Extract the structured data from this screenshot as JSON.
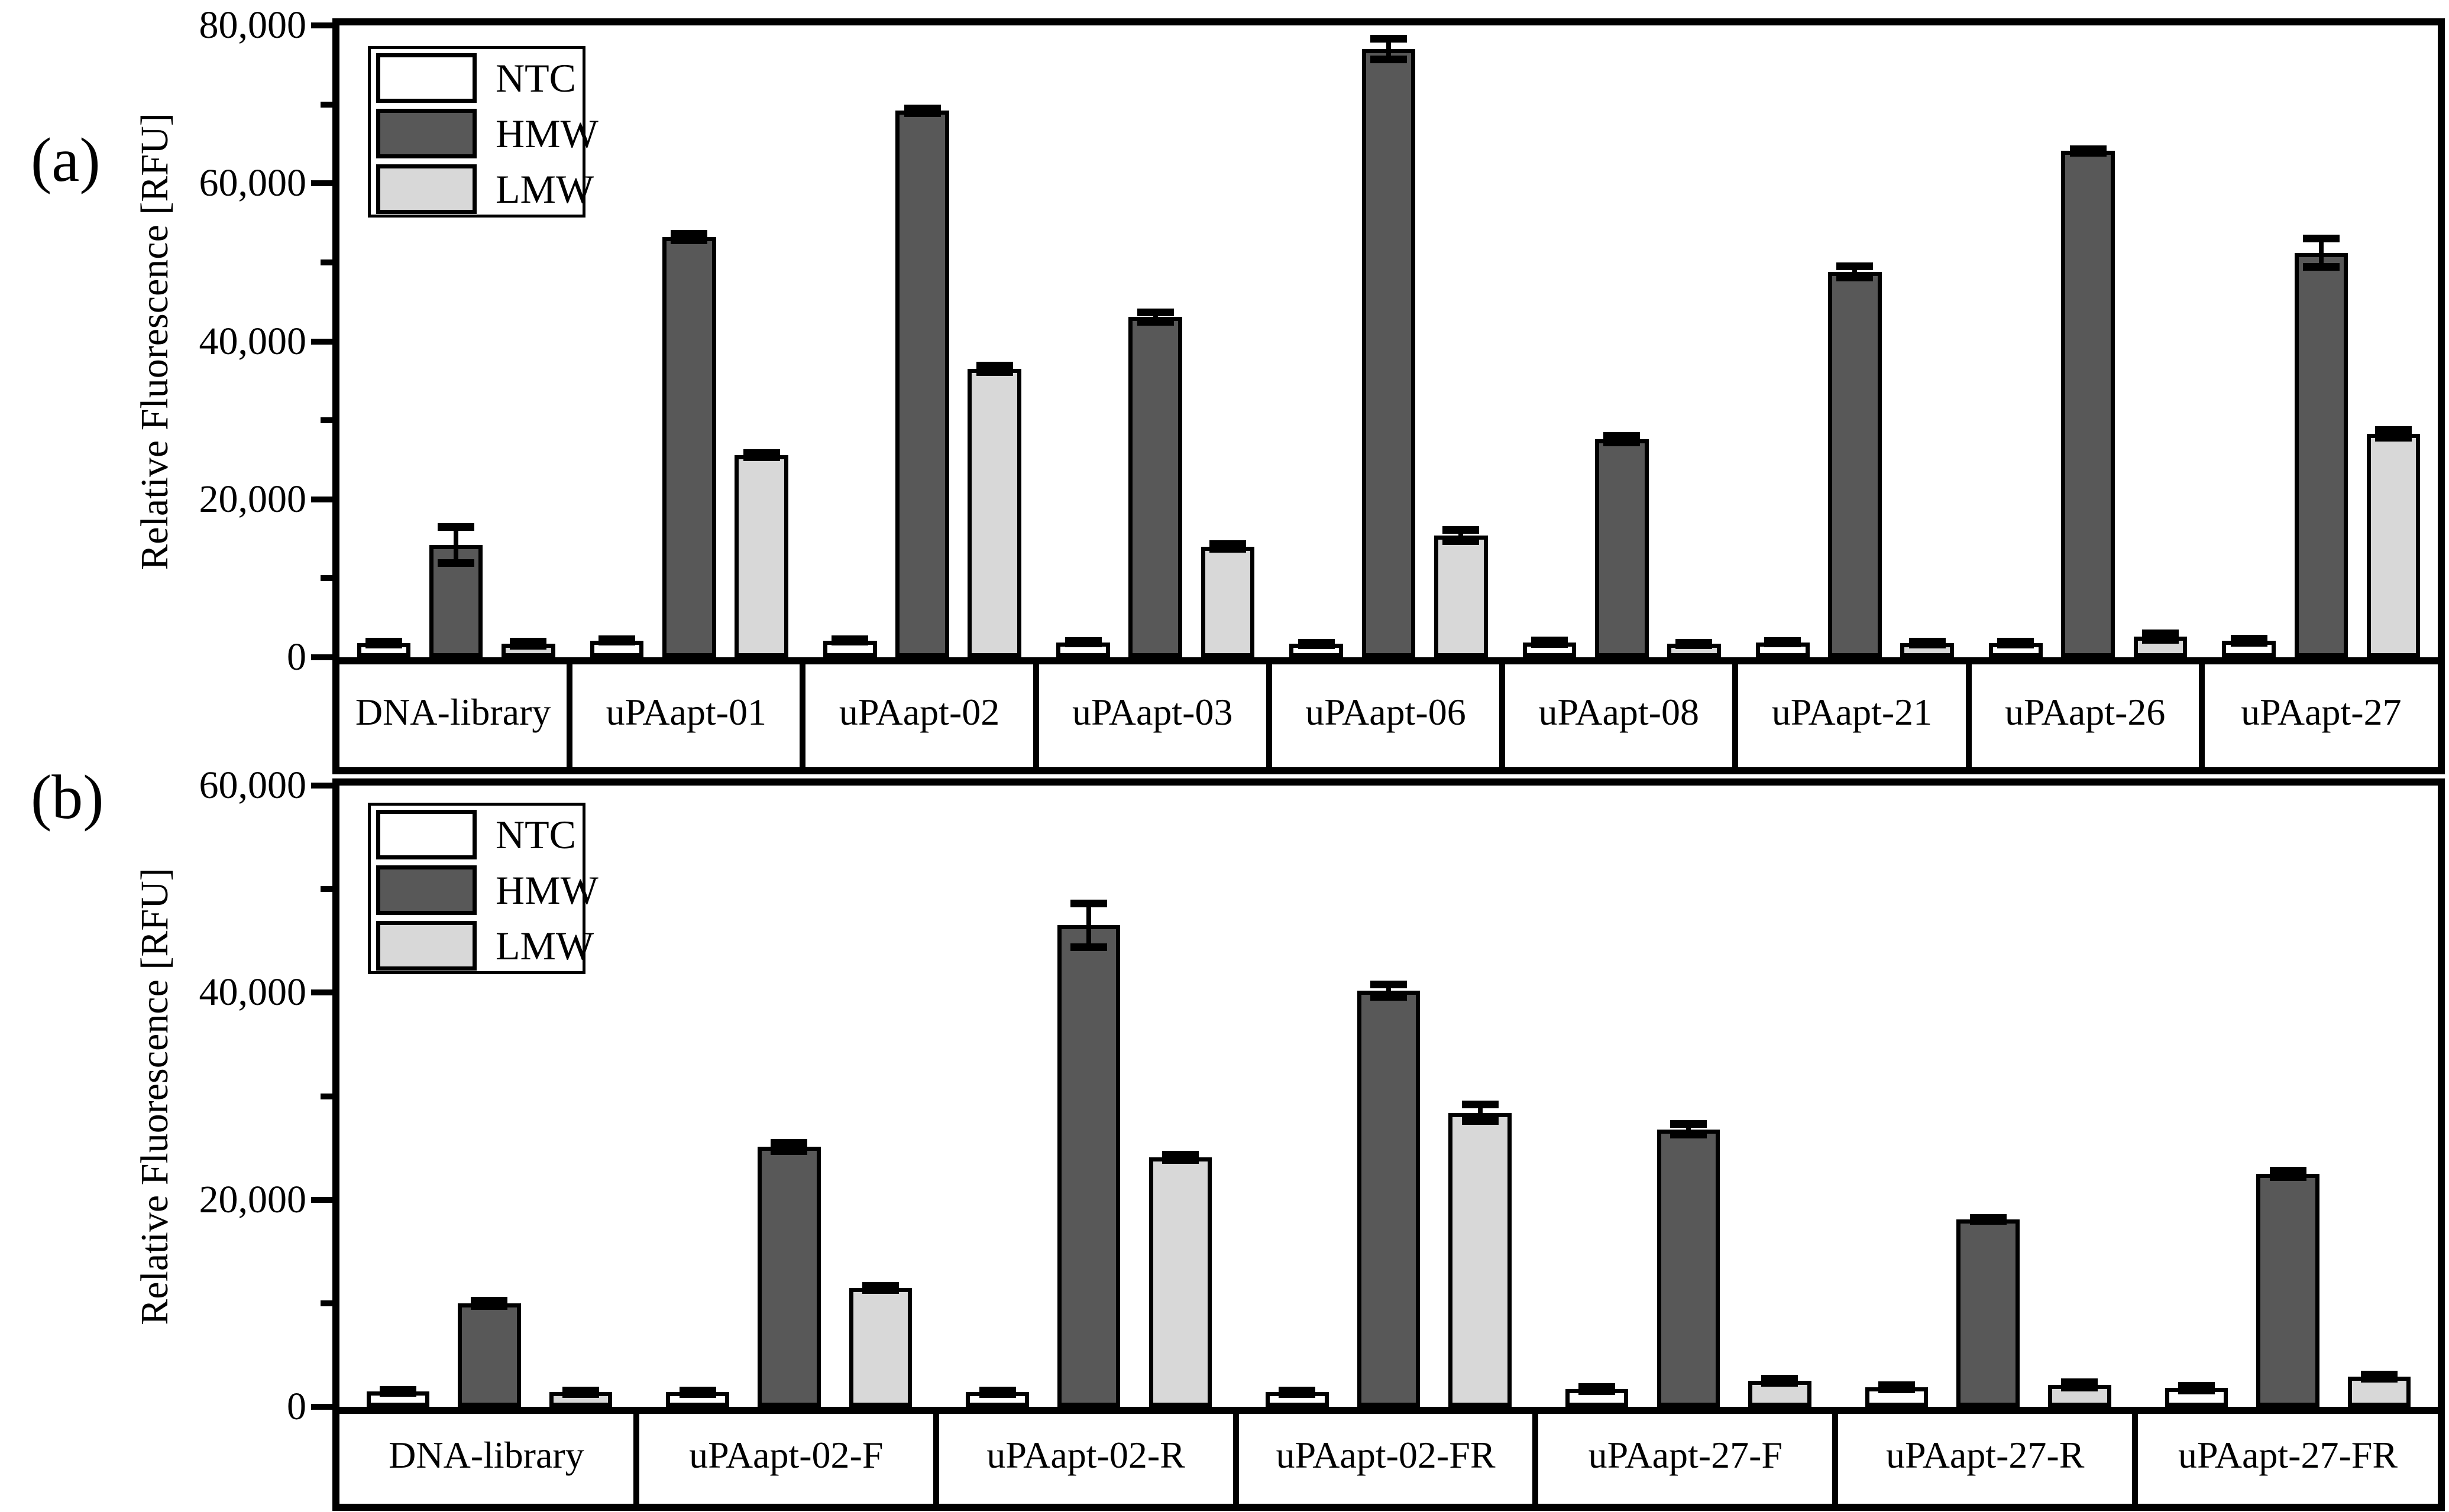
{
  "figure": {
    "background": "#ffffff",
    "text_color": "#000000",
    "frame_color": "#000000"
  },
  "chart_data": [
    {
      "type": "bar",
      "panel_label": "(a)",
      "ylabel": "Relative Fluorescence [RFU]",
      "xlabel": "",
      "ylim": [
        0,
        80000
      ],
      "ytick_step": 20000,
      "yminor_step": 10000,
      "ytick_labels": [
        "0",
        "20,000",
        "40,000",
        "60,000",
        "80,000"
      ],
      "grid": false,
      "legend_position": "top-left-inside",
      "legend_entries": [
        "NTC",
        "HMW",
        "LMW"
      ],
      "categories": [
        "DNA-library",
        "uPAapt-01",
        "uPAapt-02",
        "uPAapt-03",
        "uPAapt-06",
        "uPAapt-08",
        "uPAapt-21",
        "uPAapt-26",
        "uPAapt-27"
      ],
      "series": [
        {
          "name": "NTC",
          "color": "#ffffff",
          "values": [
            1800,
            2100,
            2100,
            1900,
            1700,
            1900,
            1900,
            1800,
            2100
          ],
          "errors": [
            200,
            150,
            150,
            150,
            150,
            200,
            150,
            200,
            250
          ]
        },
        {
          "name": "HMW",
          "color": "#585858",
          "values": [
            14200,
            53200,
            69200,
            43100,
            77000,
            27600,
            48800,
            64100,
            51200
          ],
          "errors": [
            2300,
            400,
            300,
            600,
            1300,
            400,
            700,
            200,
            1800
          ]
        },
        {
          "name": "LMW",
          "color": "#d8d8d8",
          "values": [
            1700,
            25600,
            36500,
            14000,
            15400,
            1700,
            1800,
            2600,
            28300
          ],
          "errors": [
            250,
            250,
            400,
            300,
            700,
            150,
            200,
            400,
            500
          ]
        }
      ]
    },
    {
      "type": "bar",
      "panel_label": "(b)",
      "ylabel": "Relative Fluorescence [RFU]",
      "xlabel": "",
      "ylim": [
        0,
        60000
      ],
      "ytick_step": 20000,
      "yminor_step": 10000,
      "ytick_labels": [
        "0",
        "20,000",
        "40,000",
        "60,000"
      ],
      "grid": false,
      "legend_position": "top-left-inside",
      "legend_entries": [
        "NTC",
        "HMW",
        "LMW"
      ],
      "categories": [
        "DNA-library",
        "uPAapt-02-F",
        "uPAapt-02-R",
        "uPAapt-02-FR",
        "uPAapt-27-F",
        "uPAapt-27-R",
        "uPAapt-27-FR"
      ],
      "series": [
        {
          "name": "NTC",
          "color": "#ffffff",
          "values": [
            1500,
            1400,
            1400,
            1400,
            1700,
            1900,
            1800
          ],
          "errors": [
            150,
            150,
            150,
            150,
            200,
            200,
            250
          ]
        },
        {
          "name": "HMW",
          "color": "#585858",
          "values": [
            10000,
            25100,
            46500,
            40200,
            26800,
            18100,
            22500
          ],
          "errors": [
            250,
            400,
            2100,
            600,
            500,
            150,
            300
          ]
        },
        {
          "name": "LMW",
          "color": "#d8d8d8",
          "values": [
            1400,
            11500,
            24100,
            28400,
            2500,
            2100,
            2900
          ],
          "errors": [
            150,
            200,
            250,
            800,
            200,
            250,
            200
          ]
        }
      ]
    }
  ]
}
